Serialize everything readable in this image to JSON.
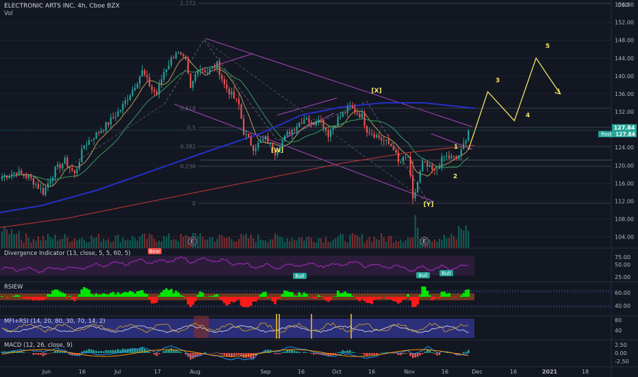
{
  "header": {
    "title": "ELECTRONIC ARTS INC, 4h, Cboe BZX",
    "volume_label": "Vol",
    "currency": "USD"
  },
  "chart_data": {
    "type": "line",
    "symbol": "ELECTRONIC ARTS INC",
    "interval": "4h",
    "exchange": "Cboe BZX",
    "price_axis": {
      "ticks": [
        "156.00",
        "152.00",
        "148.00",
        "144.00",
        "140.00",
        "136.00",
        "132.00",
        "128.00",
        "124.00",
        "120.00",
        "116.00",
        "112.00",
        "108.00",
        "104.00"
      ],
      "ylim": [
        101.5,
        157
      ]
    },
    "last_price": "127.84",
    "post_label": "Post",
    "post_price": "127.84",
    "time_axis": [
      "Jun",
      "16",
      "Jul",
      "17",
      "Aug",
      "Sep",
      "16",
      "Oct",
      "16",
      "Nov",
      "16",
      "Dec",
      "16",
      "2021",
      "18"
    ],
    "price_closes": [
      [
        0,
        117.5
      ],
      [
        6,
        118.5
      ],
      [
        12,
        117
      ],
      [
        17,
        114
      ],
      [
        22,
        119
      ],
      [
        26,
        121
      ],
      [
        30,
        118
      ],
      [
        34,
        124.5
      ],
      [
        39,
        127
      ],
      [
        44,
        129.5
      ],
      [
        49,
        132.5
      ],
      [
        54,
        137
      ],
      [
        58,
        141
      ],
      [
        62,
        137
      ],
      [
        64,
        136
      ],
      [
        67,
        141
      ],
      [
        72,
        145.5
      ],
      [
        76,
        143
      ],
      [
        78,
        137
      ],
      [
        81,
        142
      ],
      [
        85,
        141
      ],
      [
        89,
        142.5
      ],
      [
        92,
        138
      ],
      [
        98,
        133.5
      ],
      [
        100,
        127.5
      ],
      [
        104,
        124
      ],
      [
        109,
        126
      ],
      [
        113,
        123
      ],
      [
        118,
        127
      ],
      [
        123,
        129.5
      ],
      [
        126,
        131
      ],
      [
        128,
        129
      ],
      [
        131,
        131
      ],
      [
        135,
        127
      ],
      [
        139,
        130.5
      ],
      [
        144,
        133
      ],
      [
        149,
        131
      ],
      [
        151,
        128
      ],
      [
        154,
        127
      ],
      [
        158,
        125.5
      ],
      [
        162,
        124
      ],
      [
        164,
        120.5
      ],
      [
        168,
        122
      ],
      [
        170,
        112
      ],
      [
        174,
        120.5
      ],
      [
        179,
        118.5
      ],
      [
        183,
        122
      ],
      [
        188,
        121.5
      ],
      [
        190,
        123
      ],
      [
        193,
        127.8
      ]
    ],
    "annotations": {
      "wave_labels": [
        "[W]",
        "[X]",
        "[Y]",
        "1",
        "2",
        "3",
        "4",
        "5"
      ],
      "projection_path": [
        [
          193,
          123.5
        ],
        [
          201,
          136.5
        ],
        [
          212,
          130
        ],
        [
          221,
          144
        ],
        [
          231,
          136
        ]
      ],
      "fib_levels": [
        {
          "label": "1.272",
          "price": 156.3
        },
        {
          "label": "0.618",
          "price": 132.8
        },
        {
          "label": "0.5",
          "price": 128.5
        },
        {
          "label": "0.382",
          "price": 124.3
        },
        {
          "label": "0.236",
          "price": 119.8
        },
        {
          "label": "0",
          "price": 111.5
        }
      ],
      "earnings_markers": [
        "E",
        "E"
      ]
    },
    "panels": [
      {
        "title": "Divergence Indicator (13, close, 5, 5, 60, 5)",
        "ticks": [
          "75.00",
          "50.00",
          "25.00"
        ],
        "labels": [
          "Bear",
          "Bull",
          "Bull",
          "Bull"
        ]
      },
      {
        "title": "RSIEW",
        "ticks": [
          "60.00",
          "40.00"
        ]
      },
      {
        "title": "MFI+RSI (14, 20, 80, 30, 70, 14, 2)",
        "ticks": [
          "80",
          "40"
        ]
      },
      {
        "title": "MACD (12, 26, close, 9)",
        "ticks": [
          "2.50",
          "0.00",
          "-2.50"
        ]
      }
    ]
  }
}
